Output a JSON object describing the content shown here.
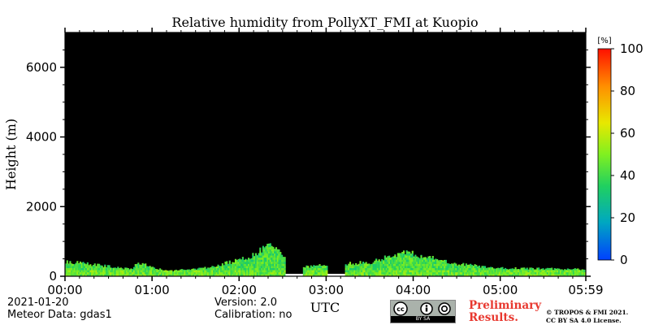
{
  "chart_data": {
    "type": "heatmap",
    "title": "Relative humidity from PollyXT_FMI at Kuopio",
    "xlabel": "UTC",
    "ylabel": "Height (m)",
    "x_ticks": [
      "00:00",
      "01:00",
      "02:00",
      "03:00",
      "04:00",
      "05:00",
      "05:59"
    ],
    "y_ticks": [
      "0",
      "2000",
      "4000",
      "6000"
    ],
    "xlim": [
      "00:00",
      "05:59"
    ],
    "ylim": [
      0,
      7000
    ],
    "colorbar": {
      "unit_label": "[%]",
      "range": [
        0,
        100
      ],
      "ticks": [
        "0",
        "20",
        "40",
        "60",
        "80",
        "100"
      ],
      "colormap": [
        "#0040ff",
        "#00b0b0",
        "#20d060",
        "#80f020",
        "#e8e800",
        "#ff9000",
        "#ff1000"
      ]
    },
    "background_color": "#000000",
    "data_top_height_m": [
      {
        "time": "00:00",
        "height": 430
      },
      {
        "time": "00:20",
        "height": 330
      },
      {
        "time": "00:45",
        "height": 200
      },
      {
        "time": "00:50",
        "height": 380
      },
      {
        "time": "01:10",
        "height": 150
      },
      {
        "time": "01:40",
        "height": 250
      },
      {
        "time": "02:10",
        "height": 600
      },
      {
        "time": "02:20",
        "height": 900
      },
      {
        "time": "02:40",
        "height": 250
      },
      {
        "time": "03:00",
        "height": 330
      },
      {
        "time": "03:30",
        "height": 400
      },
      {
        "time": "03:55",
        "height": 700
      },
      {
        "time": "04:30",
        "height": 350
      },
      {
        "time": "05:00",
        "height": 230
      },
      {
        "time": "05:59",
        "height": 200
      }
    ],
    "data_gaps": [
      {
        "start": "02:32",
        "end": "02:44"
      },
      {
        "start": "03:01",
        "end": "03:13"
      }
    ],
    "dominant_value_pct": 40
  },
  "footer": {
    "date": "2021-01-20",
    "meteor": "Meteor Data: gdas1",
    "version": "Version: 2.0",
    "calibration": "Calibration: no",
    "preliminary_line1": "Preliminary",
    "preliminary_line2": "Results.",
    "copyright_line1": "© TROPOS & FMI 2021.",
    "copyright_line2": "CC BY SA 4.0 License.",
    "license_badge": "BY     SA"
  }
}
